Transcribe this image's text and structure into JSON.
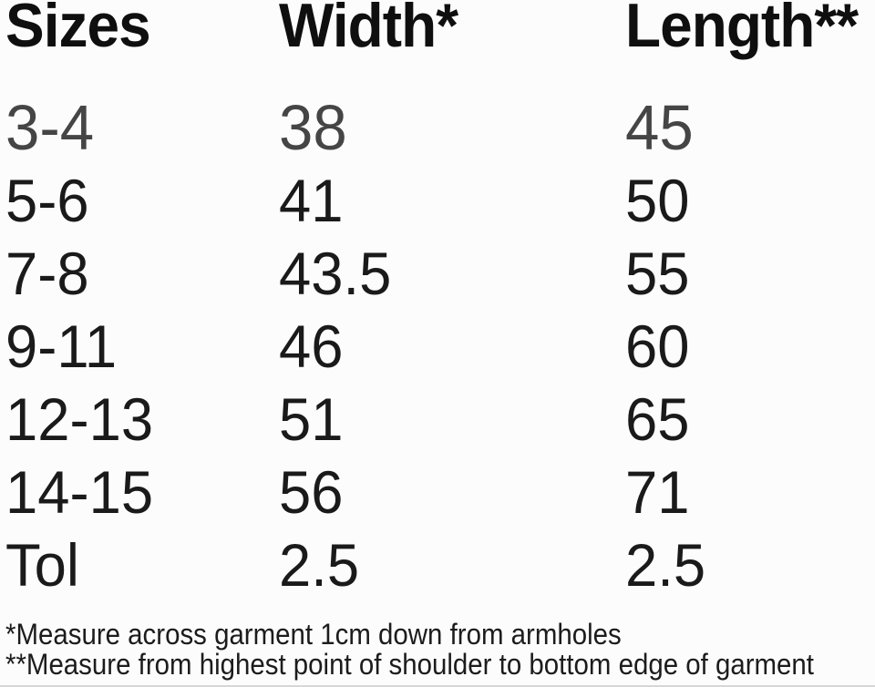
{
  "chart_data": {
    "type": "table",
    "columns": [
      "Sizes",
      "Width*",
      "Length**"
    ],
    "rows": [
      [
        "3-4",
        "38",
        "45"
      ],
      [
        "5-6",
        "41",
        "50"
      ],
      [
        "7-8",
        "43.5",
        "55"
      ],
      [
        "9-11",
        "46",
        "60"
      ],
      [
        "12-13",
        "51",
        "65"
      ],
      [
        "14-15",
        "56",
        "71"
      ],
      [
        "Tol",
        "2.5",
        "2.5"
      ]
    ],
    "footnotes": [
      "*Measure across garment 1cm down from armholes",
      "**Measure from highest point of shoulder to bottom edge of garment"
    ]
  },
  "colors": {
    "background": "#fcfcfc",
    "header_text": "#0f0f0f",
    "body_text": "#1a1a1a",
    "first_row_text": "#454545",
    "footnote_text": "#1c1c1c"
  }
}
